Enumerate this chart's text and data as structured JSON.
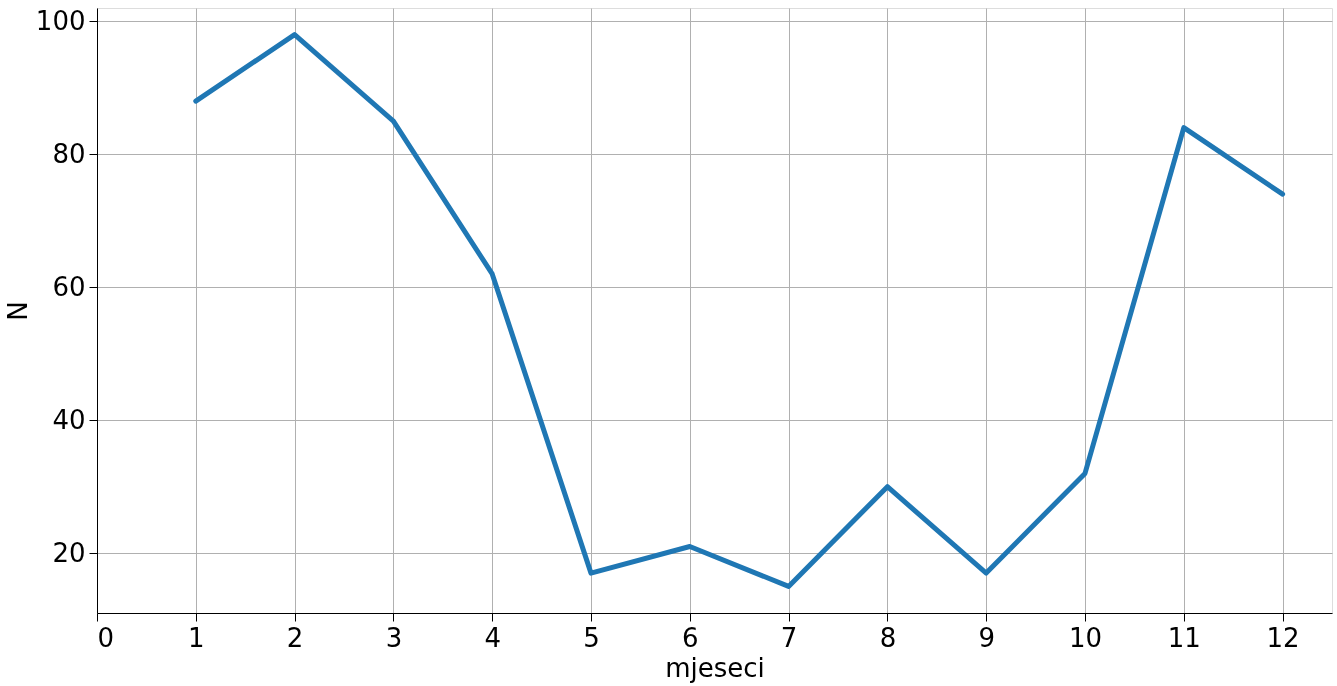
{
  "chart_data": {
    "type": "line",
    "xlabel": "mjeseci",
    "ylabel": "N",
    "x": [
      1,
      2,
      3,
      4,
      5,
      6,
      7,
      8,
      9,
      10,
      11,
      12
    ],
    "series": [
      {
        "color": "#1f77b4",
        "values": [
          88,
          98,
          85,
          62,
          17,
          21,
          15,
          30,
          17,
          32,
          84,
          74
        ]
      }
    ],
    "xlim": [
      0,
      12.5
    ],
    "xticks": [
      0,
      1,
      2,
      3,
      4,
      5,
      6,
      7,
      8,
      9,
      10,
      11,
      12
    ],
    "ylim": [
      11,
      102
    ],
    "yticks": [
      20,
      40,
      60,
      80,
      100
    ],
    "grid": true,
    "line_style": "solid",
    "marker": "none"
  }
}
